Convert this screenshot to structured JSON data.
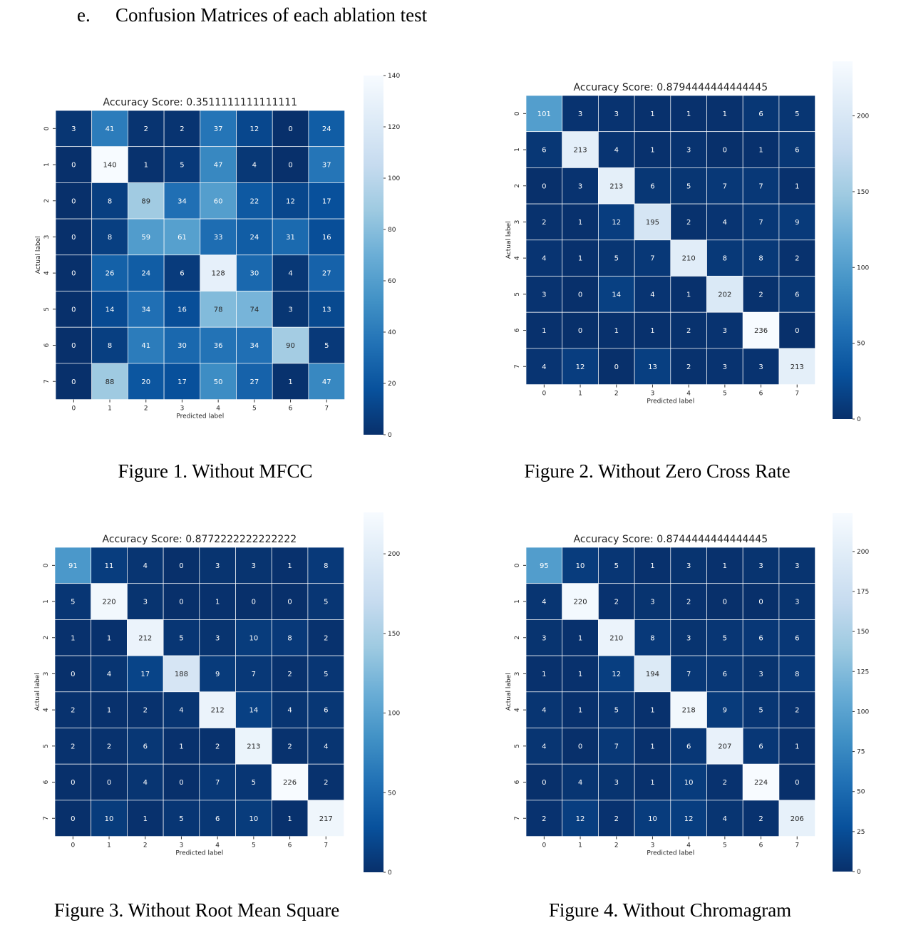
{
  "heading": {
    "number": "e.",
    "text": "Confusion Matrices of each ablation test"
  },
  "chart_data": [
    {
      "type": "heatmap",
      "title": "Accuracy Score: 0.3511111111111111",
      "xlabel": "Predicted label",
      "ylabel": "Actual label",
      "x_ticks": [
        "0",
        "1",
        "2",
        "3",
        "4",
        "5",
        "6",
        "7"
      ],
      "y_ticks": [
        "0",
        "1",
        "2",
        "3",
        "4",
        "5",
        "6",
        "7"
      ],
      "colormap": "Blues_r",
      "color_min": "#08306b",
      "color_max": "#f7fbff",
      "vmin": 0,
      "vmax": 140,
      "colorbar_ticks": [
        0,
        20,
        40,
        60,
        80,
        100,
        120,
        140
      ],
      "matrix": [
        [
          3,
          41,
          2,
          2,
          37,
          12,
          0,
          24
        ],
        [
          0,
          140,
          1,
          5,
          47,
          4,
          0,
          37
        ],
        [
          0,
          8,
          89,
          34,
          60,
          22,
          12,
          17
        ],
        [
          0,
          8,
          59,
          61,
          33,
          24,
          31,
          16
        ],
        [
          0,
          26,
          24,
          6,
          128,
          30,
          4,
          27
        ],
        [
          0,
          14,
          34,
          16,
          78,
          74,
          3,
          13
        ],
        [
          0,
          8,
          41,
          30,
          36,
          34,
          90,
          5
        ],
        [
          0,
          88,
          20,
          17,
          50,
          27,
          1,
          47
        ]
      ],
      "caption": "Figure 1. Without MFCC"
    },
    {
      "type": "heatmap",
      "title": "Accuracy Score: 0.8794444444444445",
      "xlabel": "Predicted label",
      "ylabel": "Actual label",
      "x_ticks": [
        "0",
        "1",
        "2",
        "3",
        "4",
        "5",
        "6",
        "7"
      ],
      "y_ticks": [
        "0",
        "1",
        "2",
        "3",
        "4",
        "5",
        "6",
        "7"
      ],
      "colormap": "Blues_r",
      "color_min": "#08306b",
      "color_max": "#f7fbff",
      "vmin": 0,
      "vmax": 236,
      "colorbar_ticks": [
        0,
        50,
        100,
        150,
        200
      ],
      "matrix": [
        [
          101,
          3,
          3,
          1,
          1,
          1,
          6,
          5
        ],
        [
          6,
          213,
          4,
          1,
          3,
          0,
          1,
          6
        ],
        [
          0,
          3,
          213,
          6,
          5,
          7,
          7,
          1
        ],
        [
          2,
          1,
          12,
          195,
          2,
          4,
          7,
          9
        ],
        [
          4,
          1,
          5,
          7,
          210,
          8,
          8,
          2
        ],
        [
          3,
          0,
          14,
          4,
          1,
          202,
          2,
          6
        ],
        [
          1,
          0,
          1,
          1,
          2,
          3,
          236,
          0
        ],
        [
          4,
          12,
          0,
          13,
          2,
          3,
          3,
          213
        ]
      ],
      "caption": "Figure 2. Without Zero Cross Rate"
    },
    {
      "type": "heatmap",
      "title": "Accuracy Score: 0.8772222222222222",
      "xlabel": "Predicted label",
      "ylabel": "Actual label",
      "x_ticks": [
        "0",
        "1",
        "2",
        "3",
        "4",
        "5",
        "6",
        "7"
      ],
      "y_ticks": [
        "0",
        "1",
        "2",
        "3",
        "4",
        "5",
        "6",
        "7"
      ],
      "colormap": "Blues_r",
      "color_min": "#08306b",
      "color_max": "#f7fbff",
      "vmin": 0,
      "vmax": 226,
      "colorbar_ticks": [
        0,
        50,
        100,
        150,
        200
      ],
      "matrix": [
        [
          91,
          11,
          4,
          0,
          3,
          3,
          1,
          8
        ],
        [
          5,
          220,
          3,
          0,
          1,
          0,
          0,
          5
        ],
        [
          1,
          1,
          212,
          5,
          3,
          10,
          8,
          2
        ],
        [
          0,
          4,
          17,
          188,
          9,
          7,
          2,
          5
        ],
        [
          2,
          1,
          2,
          4,
          212,
          14,
          4,
          6
        ],
        [
          2,
          2,
          6,
          1,
          2,
          213,
          2,
          4
        ],
        [
          0,
          0,
          4,
          0,
          7,
          5,
          226,
          2
        ],
        [
          0,
          10,
          1,
          5,
          6,
          10,
          1,
          217
        ]
      ],
      "caption": "Figure 3. Without Root Mean Square"
    },
    {
      "type": "heatmap",
      "title": "Accuracy Score: 0.8744444444444445",
      "xlabel": "Predicted label",
      "ylabel": "Actual label",
      "x_ticks": [
        "0",
        "1",
        "2",
        "3",
        "4",
        "5",
        "6",
        "7"
      ],
      "y_ticks": [
        "0",
        "1",
        "2",
        "3",
        "4",
        "5",
        "6",
        "7"
      ],
      "colormap": "Blues_r",
      "color_min": "#08306b",
      "color_max": "#f7fbff",
      "vmin": 0,
      "vmax": 224,
      "colorbar_ticks": [
        0,
        25,
        50,
        75,
        100,
        125,
        150,
        175,
        200
      ],
      "matrix": [
        [
          95,
          10,
          5,
          1,
          3,
          1,
          3,
          3
        ],
        [
          4,
          220,
          2,
          3,
          2,
          0,
          0,
          3
        ],
        [
          3,
          1,
          210,
          8,
          3,
          5,
          6,
          6
        ],
        [
          1,
          1,
          12,
          194,
          7,
          6,
          3,
          8
        ],
        [
          4,
          1,
          5,
          1,
          218,
          9,
          5,
          2
        ],
        [
          4,
          0,
          7,
          1,
          6,
          207,
          6,
          1
        ],
        [
          0,
          4,
          3,
          1,
          10,
          2,
          224,
          0
        ],
        [
          2,
          12,
          2,
          10,
          12,
          4,
          2,
          206
        ]
      ],
      "caption": "Figure 4. Without Chromagram"
    }
  ]
}
